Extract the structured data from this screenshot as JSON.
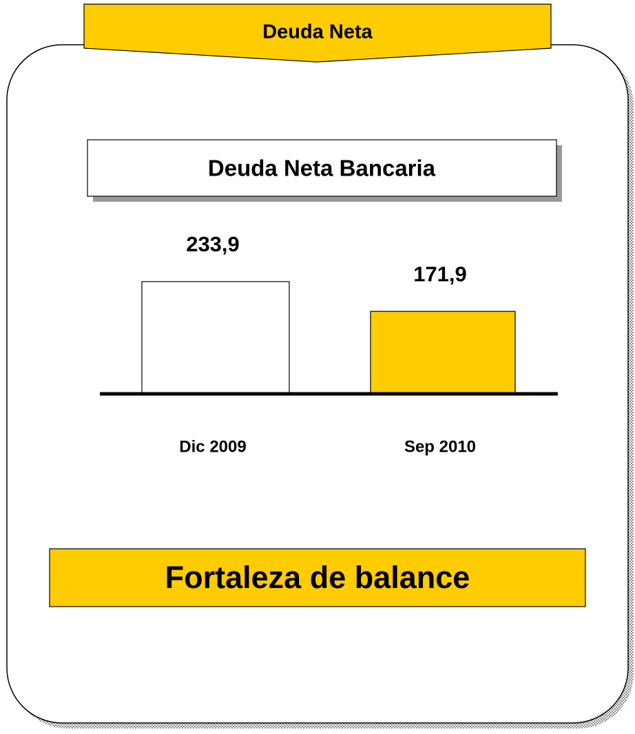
{
  "chart_data": {
    "type": "bar",
    "title": "Deuda Neta",
    "subtitle": "Deuda Neta Bancaria",
    "categories": [
      "Dic 2009",
      "Sep 2010"
    ],
    "values": [
      233.9,
      171.9
    ],
    "value_labels": [
      "233,9",
      "171,9"
    ],
    "colors": [
      "#ffffff",
      "#ffcc00"
    ],
    "annotations": [
      "Fortaleza de balance"
    ]
  }
}
